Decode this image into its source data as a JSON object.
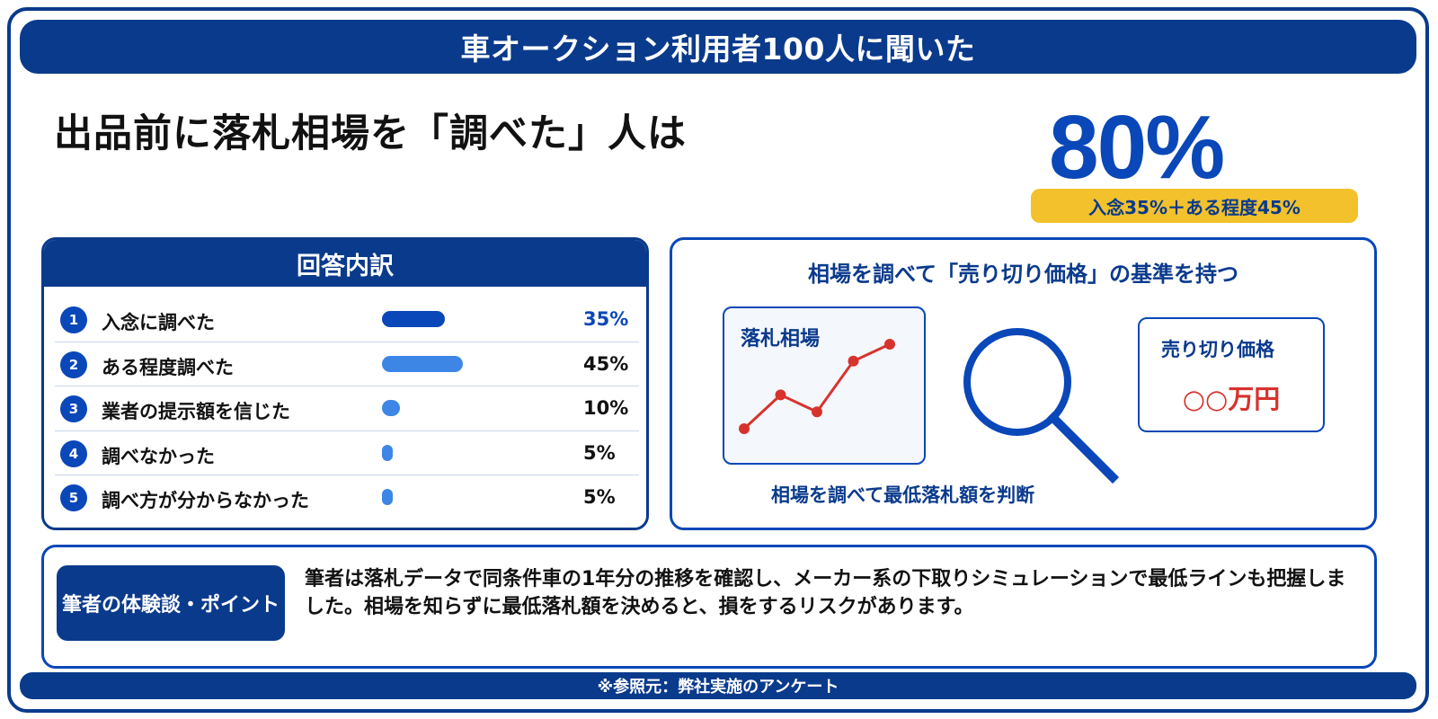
{
  "header": {
    "title": "車オークション利用者100人に聞いた"
  },
  "headline": "出品前に落札相場を「調べた」人は",
  "highlight": {
    "value": "80%",
    "note": "入念35%＋ある程度45%"
  },
  "breakdown": {
    "title": "回答内訳",
    "rows": [
      {
        "num": "1",
        "label": "入念に調べた",
        "value": "35%",
        "pct": 35,
        "color": "#0a47b8",
        "value_color": "#0a47b8"
      },
      {
        "num": "2",
        "label": "ある程度調べた",
        "value": "45%",
        "pct": 45,
        "color": "#3d86e6",
        "value_color": "#111111"
      },
      {
        "num": "3",
        "label": "業者の提示額を信じた",
        "value": "10%",
        "pct": 10,
        "color": "#3d86e6",
        "value_color": "#111111"
      },
      {
        "num": "4",
        "label": "調べなかった",
        "value": "5%",
        "pct": 5,
        "color": "#3d86e6",
        "value_color": "#111111"
      },
      {
        "num": "5",
        "label": "調べ方が分からなかった",
        "value": "5%",
        "pct": 5,
        "color": "#3d86e6",
        "value_color": "#111111"
      }
    ]
  },
  "concept": {
    "title": "相場を調べて「売り切り価格」の基準を持つ",
    "market_label": "落札相場",
    "market_trend": [
      1,
      3,
      2,
      5,
      6
    ],
    "price_label": "売り切り価格",
    "price_value": "○○万円",
    "caption": "相場を調べて最低落札額を判断",
    "icon": "magnifier-icon"
  },
  "experience": {
    "badge": "筆者の体験談・ポイント",
    "text": "筆者は落札データで同条件車の1年分の推移を確認し、メーカー系の下取りシミュレーションで最低ラインも把握しました。相場を知らずに最低落札額を決めると、損をするリスクがあります。"
  },
  "footer": {
    "source": "※参照元：弊社実施のアンケート"
  },
  "colors": {
    "navy": "#0a3a8c",
    "blue": "#0a47b8",
    "light_blue": "#3d86e6",
    "yellow": "#f2c12c",
    "red": "#d7332d"
  }
}
